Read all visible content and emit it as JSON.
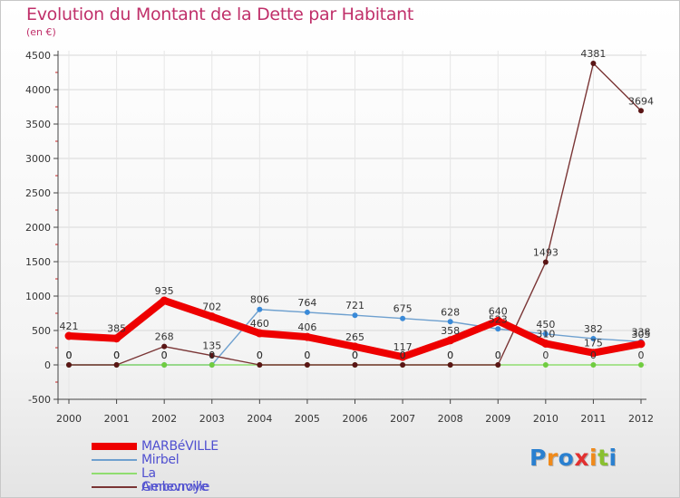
{
  "title": "Evolution du Montant de la Dette par Habitant",
  "subtitle": "(en €)",
  "logo": {
    "text": "Proxiti",
    "colors": [
      "#2a80d0",
      "#f08a1a",
      "#2a80d0",
      "#e23030",
      "#f08a1a",
      "#8ac030",
      "#2a80d0"
    ]
  },
  "chart_data": {
    "type": "line",
    "title": "Evolution du Montant de la Dette par Habitant",
    "subtitle": "(en €)",
    "x": [
      "2000",
      "2001",
      "2002",
      "2003",
      "2004",
      "2005",
      "2006",
      "2007",
      "2008",
      "2009",
      "2010",
      "2011",
      "2012"
    ],
    "ylim": [
      -500,
      4500
    ],
    "yticks": [
      -500,
      0,
      500,
      1000,
      1500,
      2000,
      2500,
      3000,
      3500,
      4000,
      4500
    ],
    "grid": true,
    "legend_position": "bottom-left",
    "series": [
      {
        "name": "MARBéVILLE",
        "color": "#ee0000",
        "marker": "#ee0000",
        "emphasis": true,
        "values": [
          421,
          385,
          935,
          702,
          460,
          406,
          265,
          117,
          358,
          640,
          310,
          175,
          305
        ]
      },
      {
        "name": "Mirbel",
        "color": "#6ea0cf",
        "marker": "#3a8ad8",
        "emphasis": false,
        "values": [
          0,
          0,
          0,
          0,
          806,
          764,
          721,
          675,
          628,
          523,
          450,
          382,
          338
        ]
      },
      {
        "name": "La Genevroye",
        "color": "#90dd70",
        "marker": "#70cc40",
        "emphasis": false,
        "values": [
          0,
          0,
          0,
          0,
          0,
          0,
          0,
          0,
          0,
          0,
          0,
          0,
          0
        ]
      },
      {
        "name": "Ambonville",
        "color": "#7a3535",
        "marker": "#5a1515",
        "emphasis": false,
        "values": [
          0,
          0,
          268,
          135,
          0,
          0,
          0,
          0,
          0,
          0,
          1493,
          4381,
          3694
        ]
      }
    ]
  }
}
